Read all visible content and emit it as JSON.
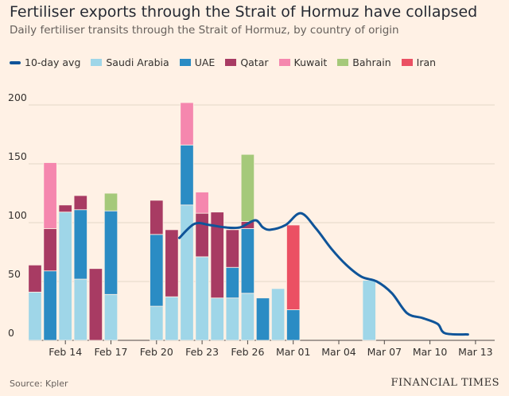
{
  "title": "Fertiliser exports through the Strait of Hormuz have collapsed",
  "subtitle": "Daily fertiliser transits through the Strait of Hormuz, by country of origin",
  "source": "Source: Kpler",
  "brand": "FINANCIAL TIMES",
  "legend": [
    {
      "label": "10-day avg",
      "color": "#0f5499",
      "kind": "line"
    },
    {
      "label": "Saudi Arabia",
      "color": "#9fd6e8",
      "kind": "box"
    },
    {
      "label": "UAE",
      "color": "#2b8cc4",
      "kind": "box"
    },
    {
      "label": "Qatar",
      "color": "#a83b63",
      "kind": "box"
    },
    {
      "label": "Kuwait",
      "color": "#f587ae",
      "kind": "box"
    },
    {
      "label": "Bahrain",
      "color": "#a5c97a",
      "kind": "box"
    },
    {
      "label": "Iran",
      "color": "#eb5063",
      "kind": "box"
    }
  ],
  "chart_data": {
    "type": "bar",
    "stacked": true,
    "title": "Fertiliser exports through the Strait of Hormuz have collapsed",
    "ylim": [
      0,
      200
    ],
    "yticks": [
      0,
      50,
      100,
      150,
      200
    ],
    "categories": [
      "Feb 12",
      "Feb 13",
      "Feb 14",
      "Feb 15",
      "Feb 16",
      "Feb 17",
      "Feb 18",
      "Feb 19",
      "Feb 20",
      "Feb 21",
      "Feb 22",
      "Feb 23",
      "Feb 24",
      "Feb 25",
      "Feb 26",
      "Feb 27",
      "Feb 28",
      "Mar 01",
      "Mar 02",
      "Mar 03",
      "Mar 04",
      "Mar 05",
      "Mar 06",
      "Mar 07",
      "Mar 08",
      "Mar 09",
      "Mar 10",
      "Mar 11",
      "Mar 12",
      "Mar 13",
      "Mar 14"
    ],
    "xtick_labels": [
      {
        "day": 2,
        "label": "Feb 14"
      },
      {
        "day": 5,
        "label": "Feb 17"
      },
      {
        "day": 8,
        "label": "Feb 20"
      },
      {
        "day": 11,
        "label": "Feb 23"
      },
      {
        "day": 14,
        "label": "Feb 26"
      },
      {
        "day": 17,
        "label": "Mar 01"
      },
      {
        "day": 20,
        "label": "Mar 04"
      },
      {
        "day": 23,
        "label": "Mar 07"
      },
      {
        "day": 26,
        "label": "Mar 10"
      },
      {
        "day": 29,
        "label": "Mar 13"
      }
    ],
    "series": [
      {
        "name": "Saudi Arabia",
        "color": "#9fd6e8",
        "values": [
          41,
          0,
          109,
          52,
          0,
          39,
          0,
          0,
          29,
          37,
          115,
          71,
          36,
          36,
          40,
          0,
          44,
          0,
          0,
          0,
          0,
          0,
          51,
          0,
          0,
          0,
          0,
          0,
          0,
          0,
          0
        ]
      },
      {
        "name": "UAE",
        "color": "#2b8cc4",
        "values": [
          0,
          59,
          0,
          59,
          0,
          71,
          0,
          0,
          61,
          0,
          51,
          0,
          0,
          26,
          55,
          36,
          0,
          26,
          0,
          0,
          0,
          0,
          0,
          0,
          0,
          0,
          0,
          0,
          0,
          0,
          0
        ]
      },
      {
        "name": "Qatar",
        "color": "#a83b63",
        "values": [
          23,
          36,
          6,
          12,
          61,
          0,
          0,
          0,
          29,
          57,
          0,
          37,
          73,
          32,
          6,
          0,
          0,
          0,
          0,
          0,
          0,
          0,
          0,
          0,
          0,
          0,
          0,
          0,
          0,
          0,
          0
        ]
      },
      {
        "name": "Kuwait",
        "color": "#f587ae",
        "values": [
          0,
          56,
          0,
          0,
          0,
          0,
          0,
          0,
          0,
          0,
          36,
          18,
          0,
          0,
          0,
          0,
          0,
          0,
          0,
          0,
          0,
          0,
          0,
          0,
          0,
          0,
          0,
          0,
          0,
          0,
          0
        ]
      },
      {
        "name": "Bahrain",
        "color": "#a5c97a",
        "values": [
          0,
          0,
          0,
          0,
          0,
          15,
          0,
          0,
          0,
          0,
          0,
          0,
          0,
          0,
          57,
          0,
          0,
          0,
          0,
          0,
          0,
          0,
          0,
          0,
          0,
          0,
          0,
          0,
          0,
          0,
          0
        ]
      },
      {
        "name": "Iran",
        "color": "#eb5063",
        "values": [
          0,
          0,
          0,
          0,
          0,
          0,
          0,
          0,
          0,
          0,
          0,
          0,
          0,
          0,
          0,
          0,
          0,
          72,
          0,
          0,
          0,
          0,
          0,
          0,
          0,
          0,
          0,
          0,
          0,
          0,
          0
        ]
      }
    ],
    "avg_line": {
      "name": "10-day avg",
      "color": "#0f5499",
      "points": [
        [
          9.5,
          87
        ],
        [
          10.5,
          99
        ],
        [
          11.5,
          98
        ],
        [
          12.5,
          96
        ],
        [
          13.5,
          96
        ],
        [
          14.5,
          102
        ],
        [
          15,
          96
        ],
        [
          15.5,
          94
        ],
        [
          16.5,
          98
        ],
        [
          17.5,
          108
        ],
        [
          18.5,
          95
        ],
        [
          19.5,
          78
        ],
        [
          20.5,
          64
        ],
        [
          21.5,
          54
        ],
        [
          22.5,
          50
        ],
        [
          23.5,
          40
        ],
        [
          24.5,
          23
        ],
        [
          25.5,
          19
        ],
        [
          26.5,
          14
        ],
        [
          27,
          6
        ],
        [
          28.5,
          5
        ]
      ]
    }
  }
}
